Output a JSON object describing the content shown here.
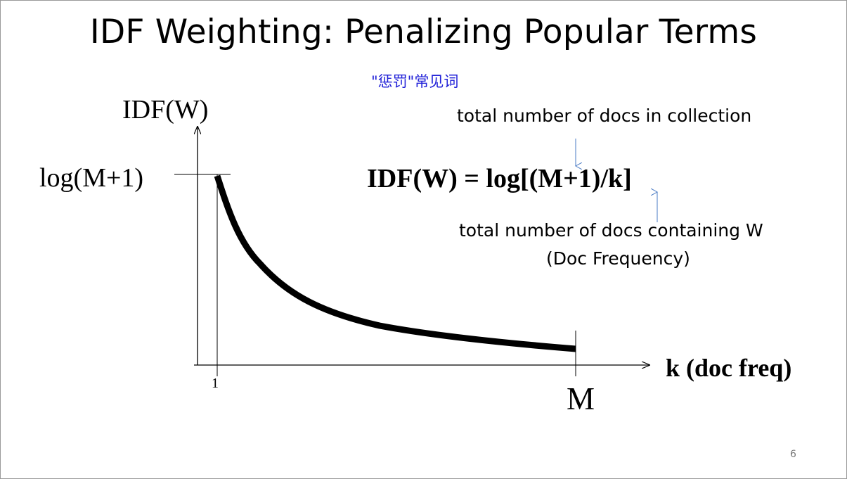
{
  "slide": {
    "title": "IDF Weighting: Penalizing Popular Terms",
    "subtitle": "\"惩罚\"常见词",
    "page_number": "6"
  },
  "graph": {
    "y_axis_label": "IDF(W)",
    "y_max_label": "log(M+1)",
    "x_axis_label": "k (doc freq)",
    "x_tick_start": "1",
    "x_tick_end": "M",
    "curve_color": "#000000"
  },
  "formula": {
    "text": "IDF(W) = log[(M+1)/k]",
    "annotation_M": "total number of docs in collection",
    "annotation_k_line1": "total number of docs containing W",
    "annotation_k_line2": "(Doc Frequency)",
    "arrow_color": "#4a7bc4"
  }
}
